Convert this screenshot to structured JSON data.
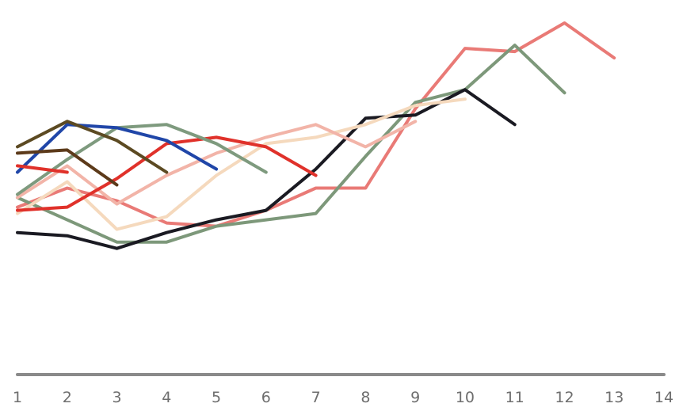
{
  "chart_data": {
    "type": "line",
    "title": "",
    "xlabel": "",
    "ylabel": "",
    "x": [
      1,
      2,
      3,
      4,
      5,
      6,
      7,
      8,
      9,
      10,
      11,
      12,
      13,
      14
    ],
    "x_tick_labels": [
      "1",
      "2",
      "3",
      "4",
      "5",
      "6",
      "7",
      "8",
      "9",
      "10",
      "11",
      "12",
      "13",
      "14"
    ],
    "xlim": [
      1,
      14
    ],
    "ylim": [
      0,
      100
    ],
    "grid": false,
    "legend": "none",
    "axis_color": "#8a8a8a",
    "series": [
      {
        "color": "#e97a76",
        "x": [
          1,
          2,
          3,
          4,
          5,
          6,
          7,
          8,
          9,
          10,
          11,
          12,
          13
        ],
        "values": [
          42,
          48,
          44,
          37,
          36,
          41,
          48,
          48,
          73,
          92,
          91,
          100,
          89
        ]
      },
      {
        "color": "#7d987a",
        "x": [
          1,
          2,
          3,
          4,
          5,
          6,
          7,
          8,
          9,
          10,
          11,
          12
        ],
        "values": [
          45,
          38,
          31,
          31,
          36,
          38,
          40,
          58,
          75,
          79,
          93,
          78
        ]
      },
      {
        "color": "#1a1a22",
        "x": [
          1,
          2,
          3,
          4,
          5,
          6,
          7,
          8,
          9,
          10,
          11
        ],
        "values": [
          34,
          33,
          29,
          34,
          38,
          41,
          54,
          70,
          71,
          79,
          68
        ]
      },
      {
        "color": "#f5d9bd",
        "x": [
          1,
          2,
          3,
          4,
          5,
          6,
          7,
          8,
          9,
          10
        ],
        "values": [
          40,
          50,
          35,
          39,
          52,
          62,
          64,
          68,
          74,
          76
        ]
      },
      {
        "color": "#f2b4a8",
        "x": [
          1,
          2,
          3,
          4,
          5,
          6,
          7,
          8,
          9
        ],
        "values": [
          45,
          55,
          43,
          52,
          59,
          64,
          68,
          61,
          69
        ]
      },
      {
        "color": "#e0312a",
        "x": [
          1,
          2,
          3,
          4,
          5,
          6,
          7
        ],
        "values": [
          41,
          42,
          51,
          62,
          64,
          61,
          52
        ]
      },
      {
        "color": "#7e9a7e",
        "x": [
          1,
          2,
          3,
          4,
          5,
          6
        ],
        "values": [
          46,
          57,
          67,
          68,
          62,
          53
        ]
      },
      {
        "color": "#2046a8",
        "x": [
          1,
          2,
          3,
          4,
          5
        ],
        "values": [
          53,
          68,
          67,
          63,
          54
        ]
      },
      {
        "color": "#5c4a22",
        "x": [
          1,
          2,
          3,
          4
        ],
        "values": [
          61,
          69,
          63,
          53
        ]
      },
      {
        "color": "#e0312a",
        "x": [
          1,
          2
        ],
        "values": [
          55,
          53
        ]
      },
      {
        "color": "#5c3a1a",
        "x": [
          1,
          2,
          3
        ],
        "values": [
          59,
          60,
          49
        ]
      }
    ]
  }
}
